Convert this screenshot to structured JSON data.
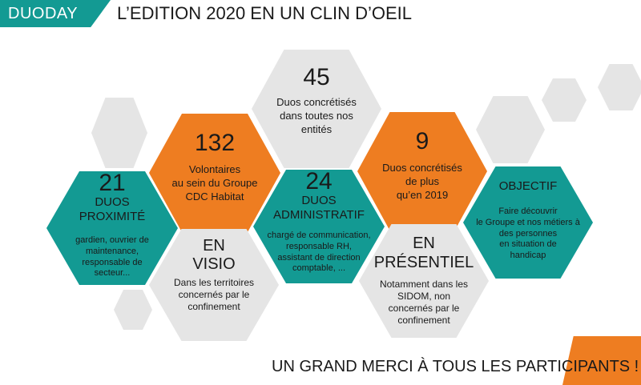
{
  "colors": {
    "teal": "#139a93",
    "orange": "#ee7d21",
    "grey": "#e5e5e5",
    "dark_grey": "#d5d5d5"
  },
  "header": {
    "tag": "DUODAY",
    "title": "L’EDITION 2020 EN UN CLIN D’OEIL"
  },
  "hexagons": {
    "duos_realises": {
      "number": "45",
      "lines": [
        "Duos concrétisés",
        "dans toutes nos",
        "entités"
      ]
    },
    "volontaires": {
      "number": "132",
      "lines": [
        "Volontaires",
        "au sein du Groupe",
        "CDC Habitat"
      ]
    },
    "duos_plus": {
      "number": "9",
      "lines": [
        "Duos concrétisés",
        "de plus",
        "qu’en 2019"
      ]
    },
    "proximite": {
      "number": "21",
      "heading": [
        "DUOS",
        "PROXIMITÉ"
      ],
      "lines": [
        "gardien, ouvrier de",
        "maintenance,",
        "responsable de",
        "secteur..."
      ]
    },
    "administratif": {
      "number": "24",
      "heading": [
        "DUOS",
        "ADMINISTRATIF"
      ],
      "lines": [
        "chargé de communication,",
        "responsable RH,",
        "assistant de direction",
        "comptable, ..."
      ]
    },
    "objectif": {
      "heading": "OBJECTIF",
      "lines": [
        "Faire découvrir",
        "le Groupe et nos métiers à",
        "des personnes",
        "en situation de",
        "handicap"
      ]
    },
    "visio": {
      "heading": [
        "EN",
        "VISIO"
      ],
      "lines": [
        "Dans les territoires",
        "concernés par le",
        "confinement"
      ]
    },
    "presentiel": {
      "heading": [
        "EN",
        "PRÉSENTIEL"
      ],
      "lines": [
        "Notamment dans les",
        "SIDOM, non",
        "concernés par le",
        "confinement"
      ]
    }
  },
  "footer": {
    "closing": "UN GRAND MERCI À TOUS LES PARTICIPANTS !"
  }
}
